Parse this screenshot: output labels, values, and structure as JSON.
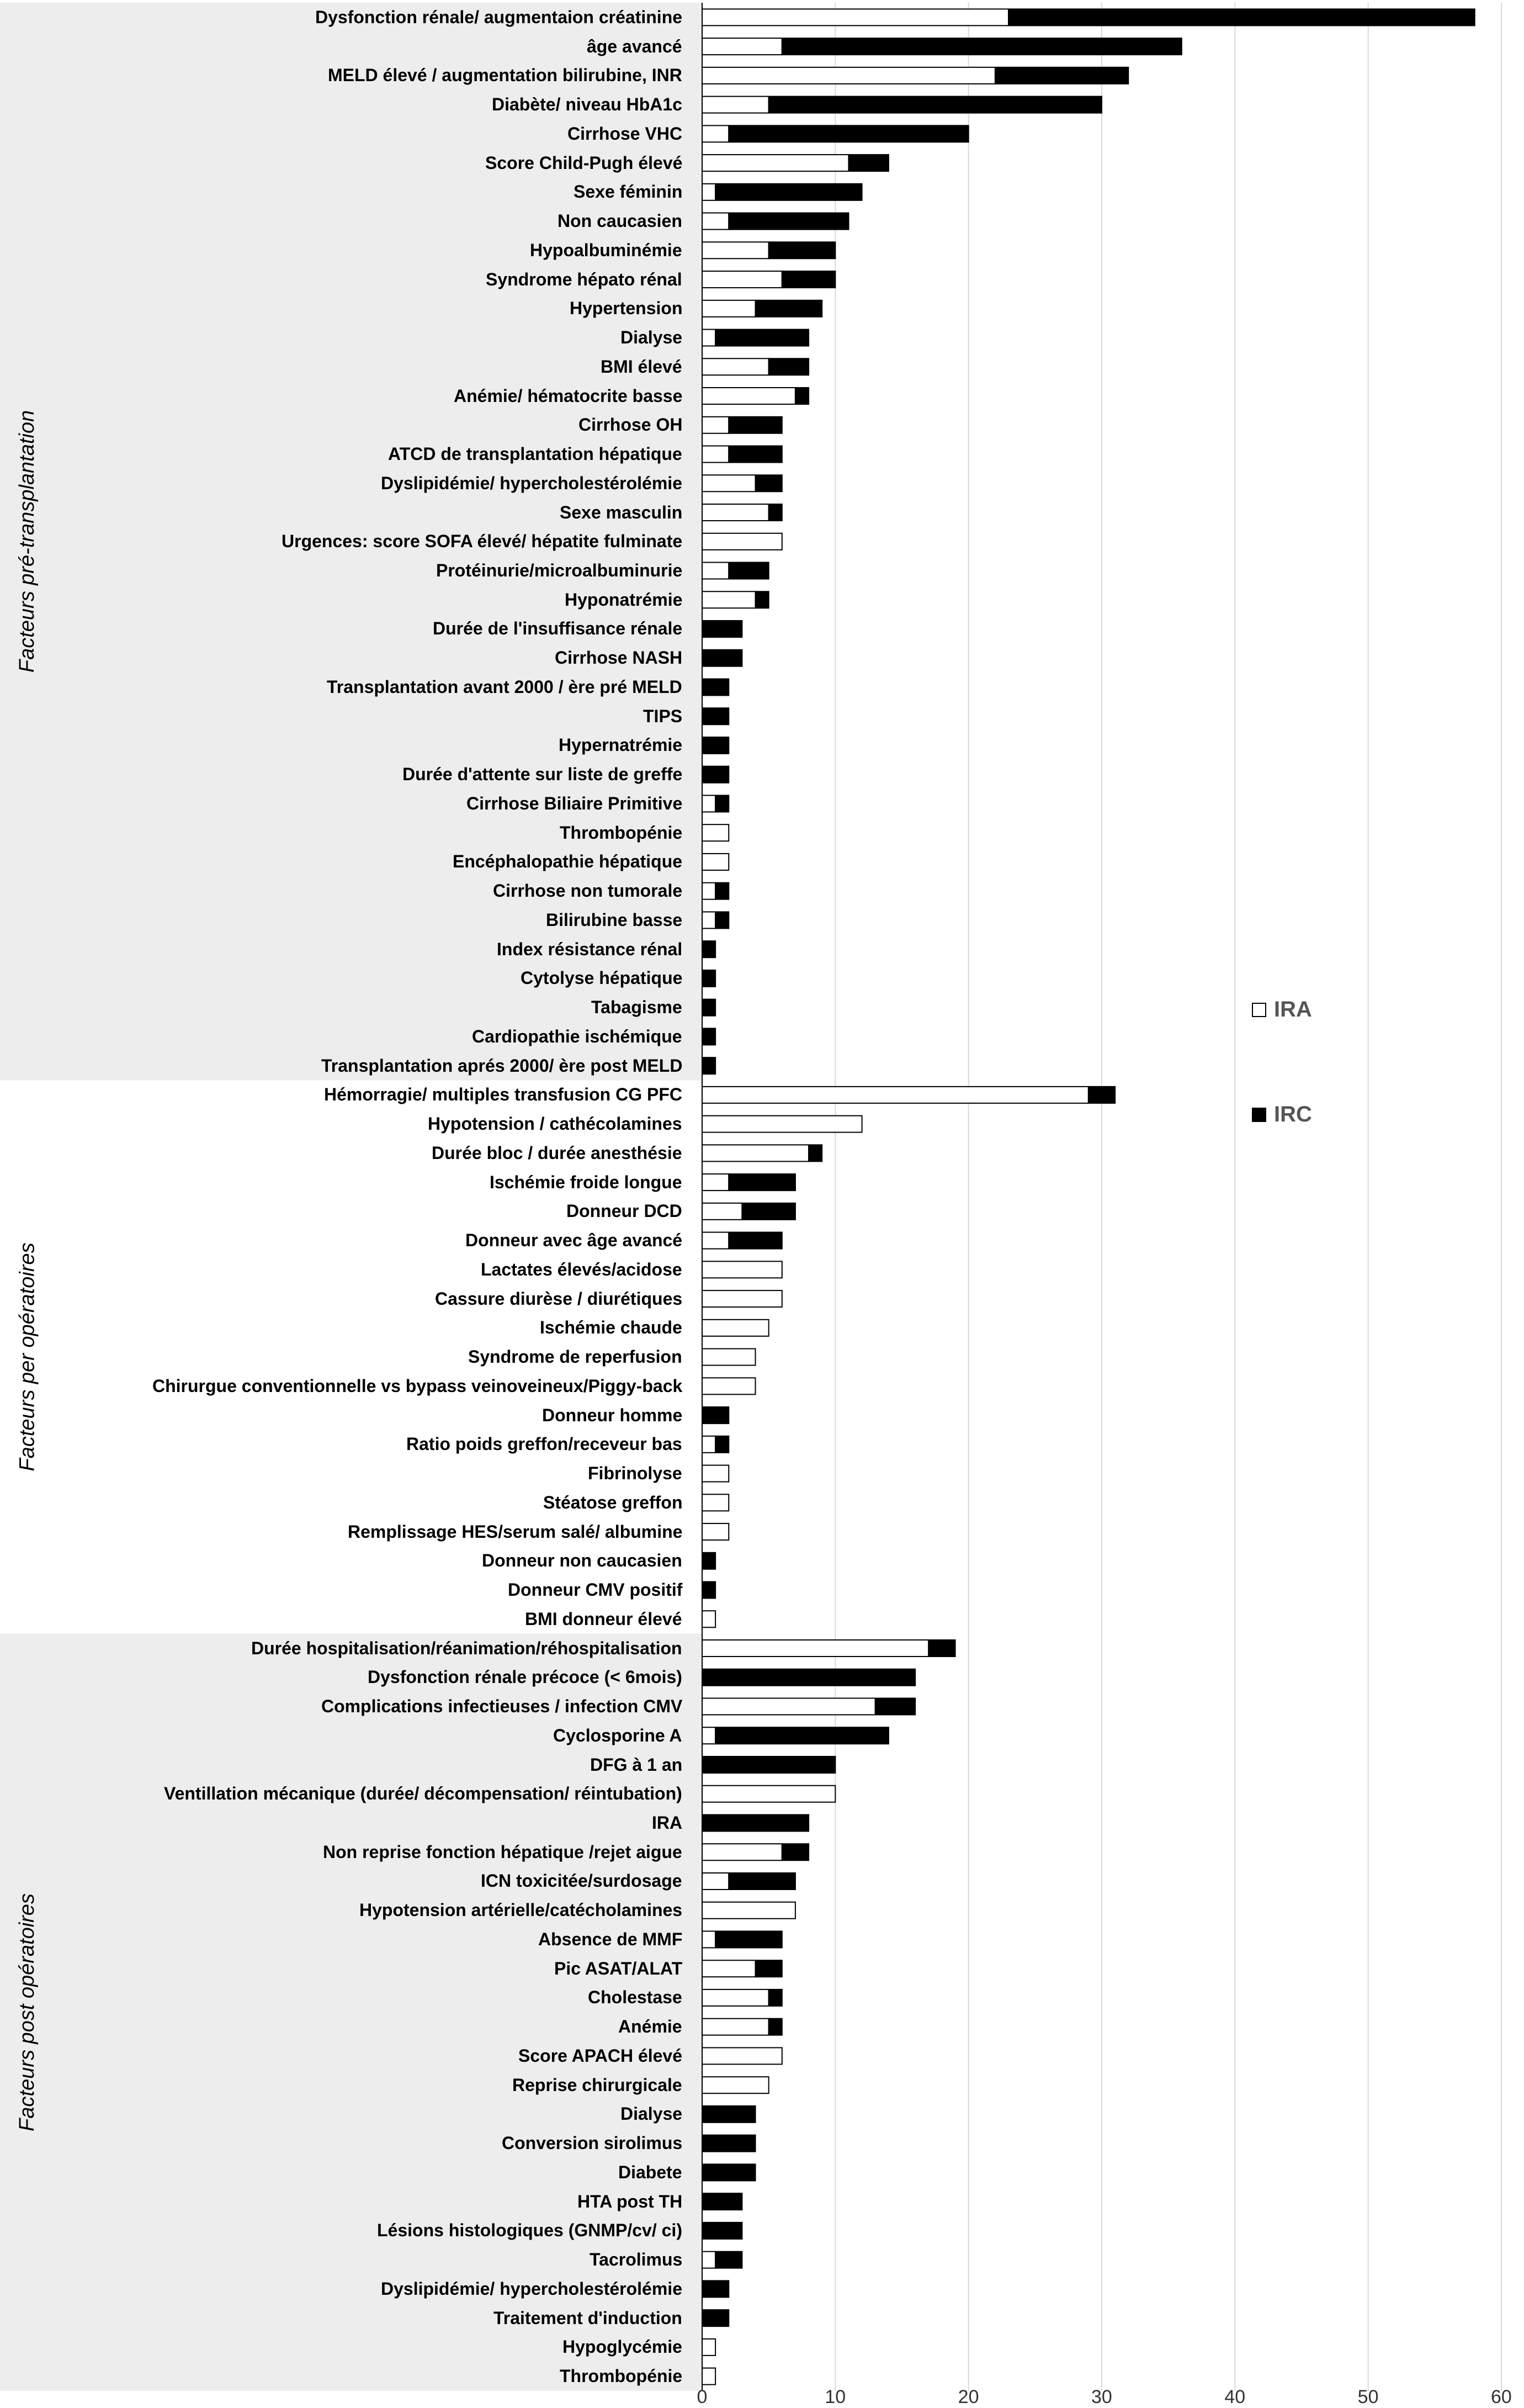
{
  "chart_data": {
    "type": "bar",
    "orientation": "horizontal",
    "stacked": true,
    "xlim": [
      0,
      60
    ],
    "x_ticks": [
      "0",
      "10",
      "20",
      "30",
      "40",
      "50",
      "60"
    ],
    "grid": "vertical",
    "legend": {
      "position": "right",
      "entries": [
        {
          "name": "IRA",
          "color": "#ffffff"
        },
        {
          "name": "IRC",
          "color": "#000000"
        }
      ]
    },
    "groups": [
      {
        "label": "Facteurs pré-transplantation",
        "first": 0,
        "last": 36
      },
      {
        "label": "Facteurs per opératoires",
        "first": 37,
        "last": 55
      },
      {
        "label": "Facteurs post opératoires",
        "first": 56,
        "last": 81
      }
    ],
    "categories": [
      "Dysfonction rénale/ augmentaion créatinine",
      "âge avancé",
      "MELD élevé / augmentation bilirubine, INR",
      "Diabète/ niveau HbA1c",
      "Cirrhose VHC",
      "Score Child-Pugh élevé",
      "Sexe féminin",
      "Non caucasien",
      "Hypoalbuminémie",
      "Syndrome hépato rénal",
      "Hypertension",
      "Dialyse",
      "BMI élevé",
      "Anémie/ hématocrite basse",
      "Cirrhose OH",
      "ATCD de transplantation hépatique",
      "Dyslipidémie/ hypercholestérolémie",
      "Sexe masculin",
      "Urgences: score SOFA élevé/  hépatite fulminate",
      "Protéinurie/microalbuminurie",
      "Hyponatrémie",
      "Durée de l'insuffisance rénale",
      "Cirrhose NASH",
      "Transplantation avant 2000 / ère pré MELD",
      "TIPS",
      "Hypernatrémie",
      "Durée d'attente sur liste de greffe",
      "Cirrhose Biliaire Primitive",
      "Thrombopénie",
      "Encéphalopathie hépatique",
      "Cirrhose non tumorale",
      "Bilirubine basse",
      "Index résistance rénal",
      "Cytolyse hépatique",
      "Tabagisme",
      "Cardiopathie ischémique",
      "Transplantation aprés 2000/ ère post MELD",
      "Hémorragie/ multiples transfusion CG PFC",
      "Hypotension / cathécolamines",
      "Durée bloc / durée anesthésie",
      "Ischémie froide longue",
      "Donneur DCD",
      "Donneur avec âge avancé",
      "Lactates élevés/acidose",
      "Cassure diurèse / diurétiques",
      "Ischémie chaude",
      "Syndrome de reperfusion",
      "Chirurgue conventionnelle vs bypass veinoveineux/Piggy-back",
      "Donneur homme",
      "Ratio poids greffon/receveur bas",
      "Fibrinolyse",
      "Stéatose greffon",
      "Remplissage HES/serum salé/ albumine",
      "Donneur non caucasien",
      "Donneur CMV positif",
      "BMI donneur élevé",
      "Durée hospitalisation/réanimation/réhospitalisation",
      "Dysfonction rénale précoce (< 6mois)",
      "Complications infectieuses / infection CMV",
      "Cyclosporine A",
      "DFG à 1 an",
      "Ventillation mécanique (durée/ décompensation/ réintubation)",
      "IRA",
      "Non reprise fonction hépatique /rejet aigue",
      "ICN toxicitée/surdosage",
      "Hypotension artérielle/catécholamines",
      "Absence de MMF",
      "Pic ASAT/ALAT",
      "Cholestase",
      "Anémie",
      "Score APACH élevé",
      "Reprise chirurgicale",
      "Dialyse",
      "Conversion sirolimus",
      "Diabete",
      "HTA post TH",
      "Lésions histologiques (GNMP/cv/ ci)",
      "Tacrolimus",
      "Dyslipidémie/ hypercholestérolémie",
      "Traitement d'induction",
      "Hypoglycémie",
      "Thrombopénie"
    ],
    "series": [
      {
        "name": "IRA",
        "color": "#ffffff",
        "values": [
          23,
          6,
          22,
          5,
          2,
          11,
          1,
          2,
          5,
          6,
          4,
          1,
          5,
          7,
          2,
          2,
          4,
          5,
          6,
          2,
          4,
          0,
          0,
          0,
          0,
          0,
          0,
          1,
          2,
          2,
          1,
          1,
          0,
          0,
          0,
          0,
          0,
          29,
          12,
          8,
          2,
          3,
          2,
          6,
          6,
          5,
          4,
          4,
          0,
          1,
          2,
          2,
          2,
          0,
          0,
          1,
          17,
          0,
          13,
          1,
          0,
          10,
          0,
          6,
          2,
          7,
          1,
          4,
          5,
          5,
          6,
          5,
          0,
          0,
          0,
          0,
          0,
          1,
          0,
          0,
          1,
          1
        ]
      },
      {
        "name": "IRC",
        "color": "#000000",
        "values": [
          35,
          30,
          10,
          25,
          18,
          3,
          11,
          9,
          5,
          4,
          5,
          7,
          3,
          1,
          4,
          4,
          2,
          1,
          0,
          3,
          1,
          3,
          3,
          2,
          2,
          2,
          2,
          1,
          0,
          0,
          1,
          1,
          1,
          1,
          1,
          1,
          1,
          2,
          0,
          1,
          5,
          4,
          4,
          0,
          0,
          0,
          0,
          0,
          2,
          1,
          0,
          0,
          0,
          1,
          1,
          0,
          2,
          16,
          3,
          13,
          10,
          0,
          8,
          2,
          5,
          0,
          5,
          2,
          1,
          1,
          0,
          0,
          4,
          4,
          4,
          3,
          3,
          2,
          2,
          2,
          0,
          0
        ]
      }
    ]
  }
}
